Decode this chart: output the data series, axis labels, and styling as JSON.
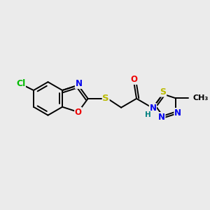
{
  "bg_color": "#ebebeb",
  "bond_color": "#000000",
  "lw": 1.4,
  "atom_colors": {
    "C": "#000000",
    "N": "#0000ee",
    "O": "#ee0000",
    "S": "#bbbb00",
    "Cl": "#00bb00",
    "H": "#008080"
  },
  "fs": 8.5
}
